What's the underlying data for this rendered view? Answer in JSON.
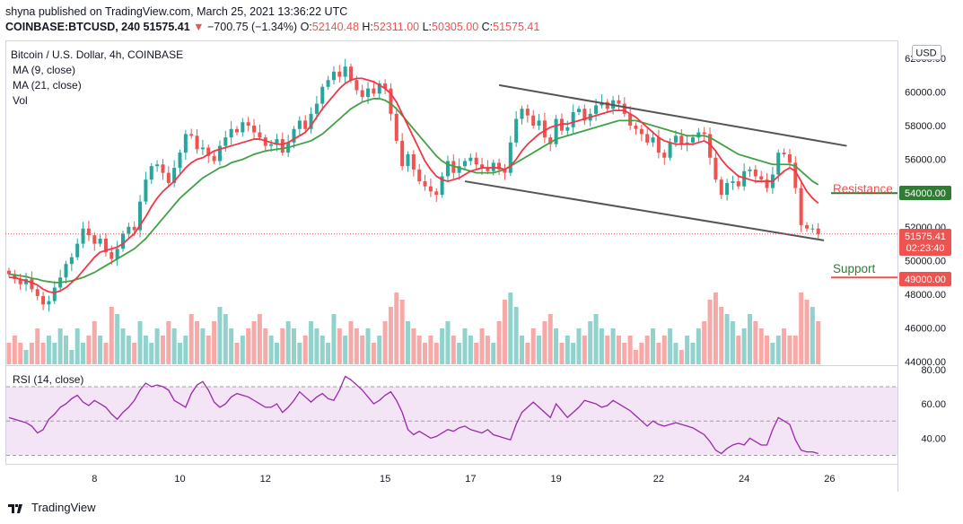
{
  "header": {
    "line1": "shyna published on TradingView.com, March 25, 2021 13:36:22 UTC",
    "symbol": "COINBASE:BTCUSD, 240",
    "last": "51575.41",
    "arrow": "▼",
    "change": "−700.75 (−1.34%)",
    "o_label": "O:",
    "o_val": "52140.48",
    "h_label": "H:",
    "h_val": "52311.00",
    "l_label": "L:",
    "l_val": "50305.00",
    "c_label": "C:",
    "c_val": "51575.41"
  },
  "legend": {
    "title": "Bitcoin / U.S. Dollar, 4h, COINBASE",
    "ma9": "MA (9, close)",
    "ma21": "MA (21, close)",
    "vol": "Vol",
    "rsi": "RSI (14, close)"
  },
  "currency_button": "USD",
  "price_badges": {
    "current": "51575.41",
    "countdown": "02:23:40",
    "resistance_level": "54000.00",
    "support_level": "49000.00"
  },
  "annotations": {
    "resistance": "Resistance",
    "support": "Support"
  },
  "footer": {
    "brand": "TradingView"
  },
  "colors": {
    "up": "#26a69a",
    "down": "#ef5350",
    "ma9": "#f23645",
    "ma21": "#43a047",
    "rsi_line": "#9c27b0",
    "rsi_band": "#f3e5f5",
    "channel": "#555555",
    "resistance": "#ef5350",
    "support": "#2e7d32"
  },
  "chart_data": [
    {
      "type": "candlestick",
      "title": "Bitcoin / U.S. Dollar, 4h, COINBASE",
      "x_tick_labels": [
        "8",
        "10",
        "12",
        "15",
        "17",
        "19",
        "22",
        "24",
        "26"
      ],
      "y_tick_labels": [
        "44000.00",
        "46000.00",
        "48000.00",
        "50000.00",
        "52000.00",
        "56000.00",
        "58000.00",
        "60000.00",
        "62000.00"
      ],
      "ylim": [
        43800,
        63000
      ],
      "close": [
        49200,
        48900,
        48600,
        48900,
        48300,
        47900,
        47400,
        47600,
        48400,
        49000,
        49800,
        50200,
        51000,
        51900,
        51500,
        51000,
        51300,
        50500,
        50100,
        50700,
        51600,
        52000,
        51800,
        53500,
        54800,
        55600,
        55700,
        55200,
        54600,
        55500,
        56400,
        57500,
        57400,
        56600,
        56700,
        56200,
        55900,
        56800,
        57300,
        57800,
        57600,
        58200,
        58000,
        57600,
        57300,
        56800,
        56900,
        57200,
        56400,
        57000,
        57800,
        58300,
        57800,
        58700,
        59300,
        60300,
        60700,
        61200,
        60900,
        61500,
        60700,
        60100,
        59700,
        60200,
        59900,
        60500,
        60200,
        58700,
        57100,
        55600,
        56300,
        55400,
        54700,
        54400,
        54100,
        53900,
        55000,
        55900,
        55200,
        55600,
        55900,
        56100,
        55700,
        55500,
        55300,
        55800,
        55400,
        55200,
        57000,
        58400,
        59000,
        58600,
        58000,
        58300,
        57300,
        56900,
        58400,
        57700,
        57900,
        58800,
        59000,
        58300,
        58700,
        59200,
        59400,
        59000,
        59500,
        59300,
        58700,
        58000,
        57800,
        57500,
        57000,
        57300,
        56400,
        56100,
        57000,
        57400,
        56900,
        57000,
        57300,
        57600,
        57500,
        56100,
        54800,
        53900,
        54600,
        54700,
        54400,
        55300,
        55400,
        55000,
        54800,
        54300,
        55100,
        56400,
        56300,
        55800,
        54300,
        52100,
        51900,
        51900,
        51575
      ],
      "ma9_series": [
        49000,
        49000,
        48900,
        48800,
        48700,
        48550,
        48300,
        48150,
        48100,
        48200,
        48400,
        48700,
        49000,
        49400,
        49800,
        50200,
        50500,
        50600,
        50700,
        50800,
        51000,
        51300,
        51600,
        52100,
        52600,
        53200,
        53700,
        54100,
        54400,
        54700,
        55100,
        55500,
        55800,
        56000,
        56100,
        56300,
        56500,
        56600,
        56700,
        56800,
        56900,
        57000,
        57100,
        57200,
        57200,
        57100,
        57000,
        56900,
        56900,
        57000,
        57200,
        57400,
        57600,
        58000,
        58500,
        59000,
        59400,
        59800,
        60200,
        60500,
        60700,
        60800,
        60800,
        60700,
        60600,
        60400,
        60200,
        59900,
        59400,
        58700,
        58000,
        57300,
        56600,
        55900,
        55400,
        55000,
        54800,
        54700,
        54800,
        54900,
        55100,
        55300,
        55400,
        55500,
        55500,
        55500,
        55500,
        55400,
        55600,
        56000,
        56500,
        56900,
        57200,
        57500,
        57700,
        57900,
        58000,
        58100,
        58100,
        58200,
        58300,
        58400,
        58500,
        58600,
        58700,
        58800,
        58900,
        58900,
        58900,
        58700,
        58500,
        58200,
        57900,
        57600,
        57300,
        57100,
        57000,
        56900,
        56900,
        56900,
        56900,
        57000,
        57100,
        56900,
        56500,
        56000,
        55600,
        55300,
        55000,
        54900,
        54800,
        54700,
        54700,
        54700,
        54700,
        55000,
        55300,
        55500,
        55300,
        54700,
        54100,
        53700,
        53400
      ],
      "ma21_series": [
        49200,
        49150,
        49100,
        49050,
        48950,
        48900,
        48800,
        48750,
        48700,
        48700,
        48750,
        48800,
        48900,
        49000,
        49150,
        49300,
        49500,
        49700,
        49900,
        50100,
        50300,
        50500,
        50700,
        51000,
        51300,
        51700,
        52100,
        52500,
        52900,
        53300,
        53700,
        54000,
        54300,
        54600,
        54900,
        55100,
        55300,
        55500,
        55600,
        55800,
        55900,
        56000,
        56150,
        56300,
        56400,
        56500,
        56550,
        56600,
        56650,
        56700,
        56800,
        56900,
        57000,
        57100,
        57300,
        57500,
        57800,
        58100,
        58400,
        58700,
        59000,
        59200,
        59400,
        59500,
        59600,
        59600,
        59500,
        59300,
        59000,
        58600,
        58200,
        57800,
        57400,
        57000,
        56600,
        56200,
        55900,
        55700,
        55600,
        55500,
        55400,
        55300,
        55200,
        55200,
        55200,
        55200,
        55300,
        55400,
        55600,
        55800,
        56000,
        56200,
        56400,
        56600,
        56800,
        57000,
        57200,
        57300,
        57400,
        57500,
        57600,
        57700,
        57800,
        57900,
        58000,
        58100,
        58200,
        58300,
        58300,
        58300,
        58300,
        58200,
        58100,
        58000,
        57900,
        57800,
        57700,
        57600,
        57500,
        57400,
        57400,
        57400,
        57400,
        57300,
        57100,
        56900,
        56700,
        56500,
        56300,
        56200,
        56100,
        56000,
        55900,
        55800,
        55700,
        55700,
        55700,
        55700,
        55600,
        55300,
        55000,
        54700,
        54500
      ],
      "volume": [
        3,
        4,
        3,
        2,
        3,
        5,
        3,
        4,
        3,
        5,
        4,
        2,
        5,
        3,
        4,
        6,
        4,
        3,
        8,
        7,
        5,
        4,
        3,
        6,
        4,
        3,
        5,
        4,
        6,
        5,
        3,
        4,
        7,
        6,
        5,
        4,
        6,
        8,
        7,
        5,
        3,
        4,
        5,
        6,
        7,
        5,
        4,
        3,
        5,
        6,
        5,
        3,
        4,
        6,
        5,
        4,
        3,
        7,
        5,
        4,
        6,
        5,
        4,
        5,
        3,
        4,
        6,
        8,
        10,
        9,
        6,
        5,
        4,
        3,
        4,
        3,
        5,
        6,
        4,
        3,
        5,
        4,
        3,
        5,
        4,
        3,
        6,
        9,
        10,
        8,
        4,
        3,
        5,
        4,
        6,
        7,
        5,
        3,
        4,
        3,
        5,
        4,
        6,
        7,
        5,
        4,
        5,
        4,
        3,
        4,
        2,
        3,
        4,
        5,
        3,
        4,
        5,
        3,
        2,
        4,
        3,
        5,
        6,
        9,
        10,
        8,
        7,
        6,
        4,
        5,
        7,
        6,
        5,
        4,
        3,
        4,
        5,
        4,
        4,
        10,
        9,
        8,
        6
      ],
      "resistance_level": 54000,
      "support_level": 49000,
      "last_price": 51575.41
    },
    {
      "type": "line",
      "title": "RSI (14, close)",
      "y_tick_labels": [
        "80.00",
        "60.00",
        "40.00"
      ],
      "ylim": [
        25,
        82
      ],
      "band": [
        30,
        70
      ],
      "values": [
        52,
        51,
        50,
        49,
        47,
        43,
        45,
        51,
        54,
        58,
        60,
        63,
        65,
        61,
        59,
        62,
        60,
        58,
        54,
        51,
        55,
        58,
        62,
        68,
        72,
        70,
        71,
        70,
        68,
        62,
        60,
        58,
        66,
        71,
        73,
        68,
        61,
        58,
        60,
        64,
        66,
        65,
        64,
        62,
        60,
        58,
        58,
        60,
        55,
        58,
        62,
        67,
        64,
        61,
        64,
        66,
        63,
        62,
        68,
        76,
        74,
        71,
        68,
        64,
        60,
        62,
        65,
        67,
        62,
        55,
        45,
        42,
        44,
        42,
        40,
        41,
        43,
        45,
        44,
        46,
        47,
        45,
        44,
        43,
        45,
        42,
        41,
        40,
        39,
        48,
        55,
        58,
        61,
        58,
        55,
        52,
        60,
        56,
        52,
        55,
        58,
        62,
        61,
        60,
        58,
        59,
        62,
        60,
        58,
        56,
        53,
        50,
        47,
        50,
        48,
        47,
        48,
        49,
        48,
        47,
        46,
        44,
        42,
        38,
        33,
        31,
        34,
        36,
        37,
        36,
        40,
        38,
        36,
        36,
        45,
        52,
        50,
        48,
        39,
        33,
        32,
        32,
        31
      ]
    }
  ]
}
